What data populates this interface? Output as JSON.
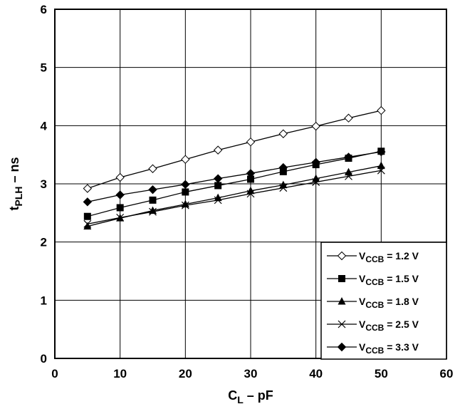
{
  "chart_data": {
    "type": "line",
    "title": "",
    "xlabel": {
      "main": "C",
      "sub": "L",
      "rest": " – pF"
    },
    "ylabel": {
      "main": "t",
      "sub": "PLH",
      "rest": " – ns"
    },
    "xlim": [
      0,
      60
    ],
    "ylim": [
      0,
      6
    ],
    "xticks": [
      0,
      10,
      20,
      30,
      40,
      50,
      60
    ],
    "yticks": [
      0,
      1,
      2,
      3,
      4,
      5,
      6
    ],
    "grid": true,
    "legend_position": "bottom-right",
    "x": [
      5,
      10,
      15,
      20,
      25,
      30,
      35,
      40,
      45,
      50
    ],
    "series": [
      {
        "name": "VCCB = 1.2 V",
        "legend": {
          "main": "V",
          "sub": "CCB",
          "rest": " = 1.2 V"
        },
        "marker": "diamond-open",
        "values": [
          2.92,
          3.11,
          3.26,
          3.42,
          3.58,
          3.72,
          3.86,
          3.99,
          4.13,
          4.26
        ]
      },
      {
        "name": "VCCB = 1.5 V",
        "legend": {
          "main": "V",
          "sub": "CCB",
          "rest": " = 1.5 V"
        },
        "marker": "square-filled",
        "values": [
          2.44,
          2.59,
          2.72,
          2.86,
          2.97,
          3.08,
          3.21,
          3.33,
          3.44,
          3.56
        ]
      },
      {
        "name": "VCCB = 1.8 V",
        "legend": {
          "main": "V",
          "sub": "CCB",
          "rest": " = 1.8 V"
        },
        "marker": "triangle-filled",
        "values": [
          2.27,
          2.41,
          2.54,
          2.65,
          2.76,
          2.88,
          2.98,
          3.09,
          3.2,
          3.31
        ]
      },
      {
        "name": "VCCB = 2.5 V",
        "legend": {
          "main": "V",
          "sub": "CCB",
          "rest": " = 2.5 V"
        },
        "marker": "x",
        "values": [
          2.31,
          2.42,
          2.52,
          2.63,
          2.72,
          2.83,
          2.93,
          3.03,
          3.13,
          3.23
        ]
      },
      {
        "name": "VCCB = 3.3 V",
        "legend": {
          "main": "V",
          "sub": "CCB",
          "rest": " = 3.3 V"
        },
        "marker": "diamond-filled",
        "values": [
          2.69,
          2.81,
          2.9,
          2.99,
          3.09,
          3.18,
          3.28,
          3.37,
          3.46,
          3.55
        ]
      }
    ]
  }
}
